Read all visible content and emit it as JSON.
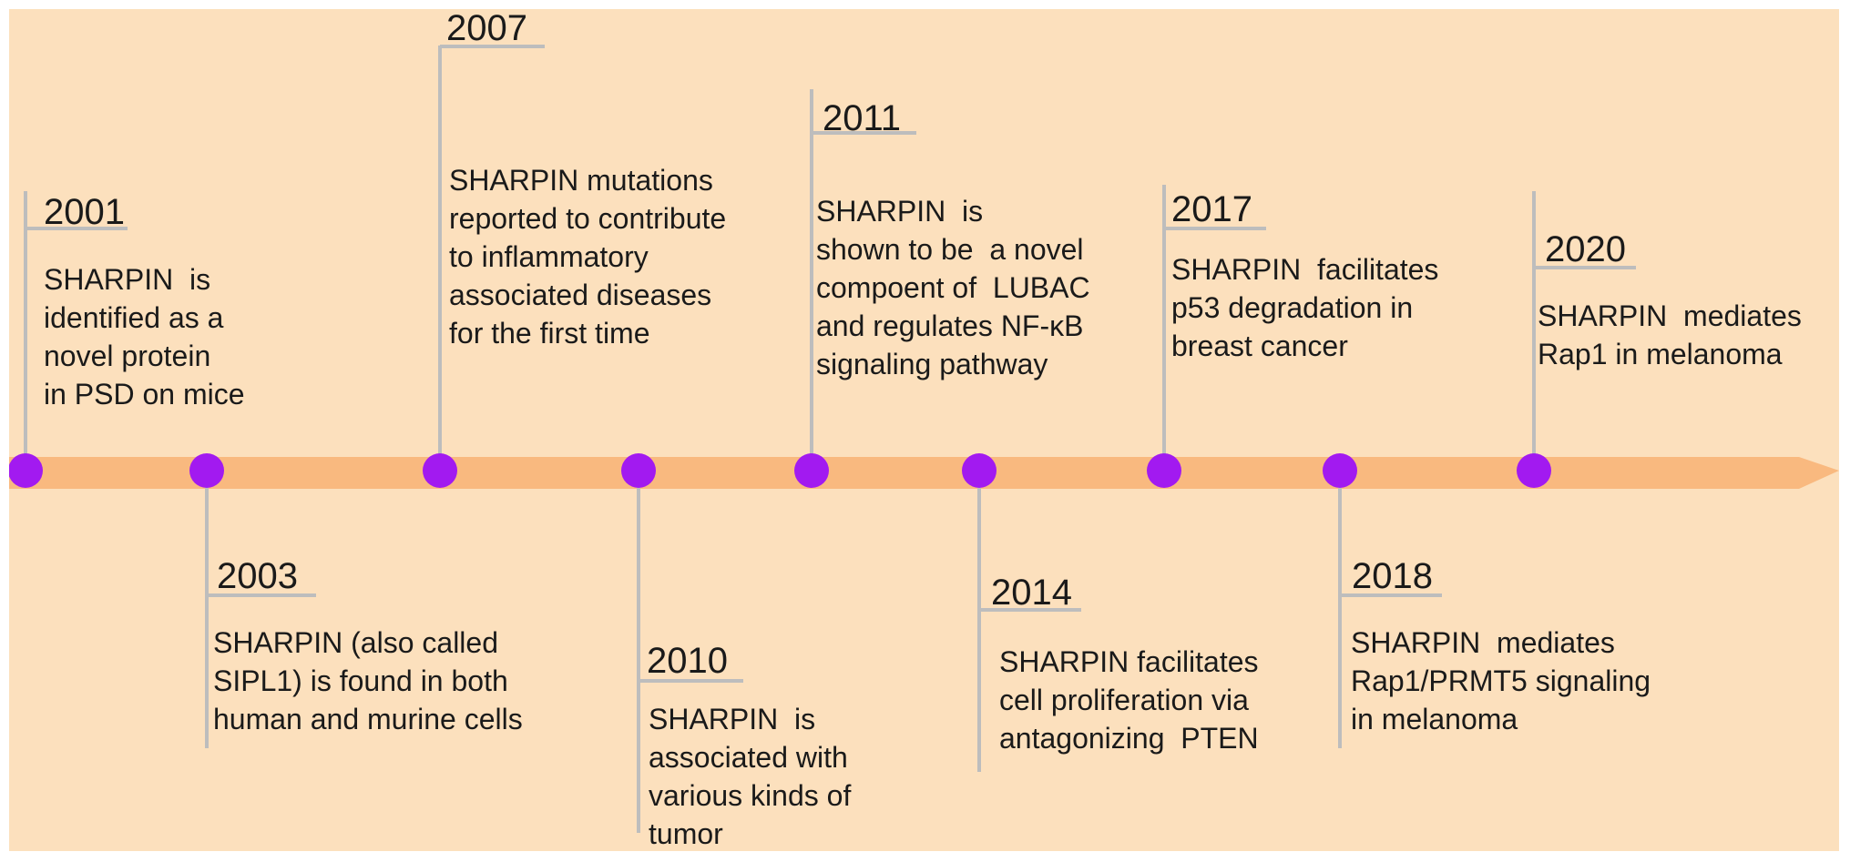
{
  "colors": {
    "background": "#FCE0BD",
    "arrow": "#F9B97F",
    "marker": "#A21AF0",
    "connector": "#BDBDBD"
  },
  "events": [
    {
      "year": "2001",
      "text": "SHARPIN  is\nidentified as a\nnovel protein\nin PSD on mice"
    },
    {
      "year": "2003",
      "text": "SHARPIN (also called\nSIPL1) is found in both\nhuman and murine cells"
    },
    {
      "year": "2007",
      "text": "SHARPIN mutations\nreported to contribute\nto inflammatory\nassociated diseases\nfor the first time"
    },
    {
      "year": "2010",
      "text": "SHARPIN  is\nassociated with\nvarious kinds of\ntumor"
    },
    {
      "year": "2011",
      "text": "SHARPIN  is\nshown to be  a novel\ncompoent of  LUBAC\nand regulates NF-κB\nsignaling pathway"
    },
    {
      "year": "2014",
      "text": "SHARPIN facilitates\ncell proliferation via\nantagonizing  PTEN"
    },
    {
      "year": "2017",
      "text": "SHARPIN  facilitates\np53 degradation in\nbreast cancer"
    },
    {
      "year": "2018",
      "text": "SHARPIN  mediates\nRap1/PRMT5 signaling\nin melanoma"
    },
    {
      "year": "2020",
      "text": "SHARPIN  mediates\nRap1 in melanoma"
    }
  ]
}
